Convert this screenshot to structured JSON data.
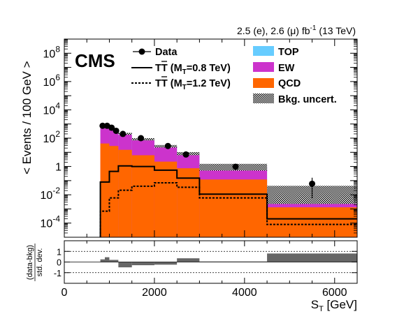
{
  "figure": {
    "experiment": "CMS",
    "lumi_parts": [
      "2.5 (e), 2.6 (μ) fb",
      "-1",
      " (13 TeV)"
    ]
  },
  "chart_data": [
    {
      "type": "histogram",
      "panel": "main",
      "ylabel": "< Events / 100 GeV >",
      "xlabel": "",
      "ylog": true,
      "xlim": [
        0,
        6500
      ],
      "ylim": [
        1e-05,
        1000000000
      ],
      "yticks": [
        {
          "base": "10",
          "exp": "8"
        },
        {
          "base": "10",
          "exp": "6"
        },
        {
          "base": "10",
          "exp": "4"
        },
        {
          "base": "10",
          "exp": "2"
        },
        {
          "base": "1",
          "exp": ""
        },
        {
          "base": "10",
          "exp": "-2"
        },
        {
          "base": "10",
          "exp": "-4"
        }
      ],
      "bin_edges": [
        800,
        1000,
        1200,
        1500,
        2000,
        2500,
        3000,
        4500,
        6500
      ],
      "stack": [
        {
          "name": "TOP",
          "color": "#66ccff",
          "values": [
            0.4,
            0.3,
            0.25,
            0.17,
            0.08,
            0.04,
            0.002,
            0.0002
          ]
        },
        {
          "name": "EW",
          "color": "#cc33cc",
          "values": [
            580,
            390,
            190,
            78,
            25,
            7.5,
            0.9,
            0.021
          ]
        },
        {
          "name": "QCD",
          "color": "#ff6600",
          "values": [
            42,
            28,
            15,
            6.2,
            2.2,
            0.75,
            0.12,
            0.0013
          ]
        }
      ],
      "uncertainty": {
        "name": "Bkg. uncert.",
        "rel": [
          0.15,
          0.15,
          0.16,
          0.18,
          0.2,
          0.25,
          0.5,
          0.9
        ]
      },
      "signals": [
        {
          "name": "T̅T (M_T=0.8 TeV)",
          "label_main": "TT",
          "label_mass": "=0.8 TeV",
          "style": "solid",
          "values": [
            0.08,
            0.45,
            1.1,
            1.0,
            0.55,
            0.15,
            0.011,
            0.0002
          ]
        },
        {
          "name": "T̅T (M_T=1.2 TeV)",
          "label_main": "TT",
          "label_mass": "=1.2 TeV",
          "style": "dashed",
          "values": [
            0.0007,
            0.006,
            0.021,
            0.04,
            0.07,
            0.034,
            0.006,
            8e-05
          ]
        }
      ],
      "data": {
        "name": "Data",
        "x": [
          850,
          950,
          1050,
          1150,
          1300,
          1700,
          2300,
          2700,
          3800,
          5500
        ],
        "y": [
          750,
          750,
          550,
          330,
          200,
          100,
          28,
          7,
          0.95,
          0.06
        ],
        "yerr": [
          35,
          35,
          30,
          22,
          15,
          7,
          3,
          1.5,
          0.2,
          0.1
        ]
      },
      "legend": {
        "placement": "top"
      }
    },
    {
      "type": "bar",
      "panel": "ratio",
      "ylabel_top": "(data-bkg)",
      "ylabel_bottom": "std. dev.",
      "xlabel": "S_T [GeV]",
      "xlabel_main": "S",
      "xlabel_sub": "T",
      "xlabel_rest": " [GeV]",
      "xlim": [
        0,
        6500
      ],
      "ylim": [
        -2,
        2
      ],
      "xticks": [
        "0",
        "2000",
        "4000",
        "6000"
      ],
      "yticks": [
        "1",
        "0",
        "-1"
      ],
      "bin_edges": [
        800,
        900,
        1000,
        1200,
        1500,
        2000,
        2500,
        3000,
        4500,
        6500
      ],
      "values": [
        0.25,
        0.45,
        0.2,
        -0.5,
        -0.3,
        -0.25,
        0.35,
        0.05,
        0.8
      ],
      "color": "#666666"
    }
  ]
}
